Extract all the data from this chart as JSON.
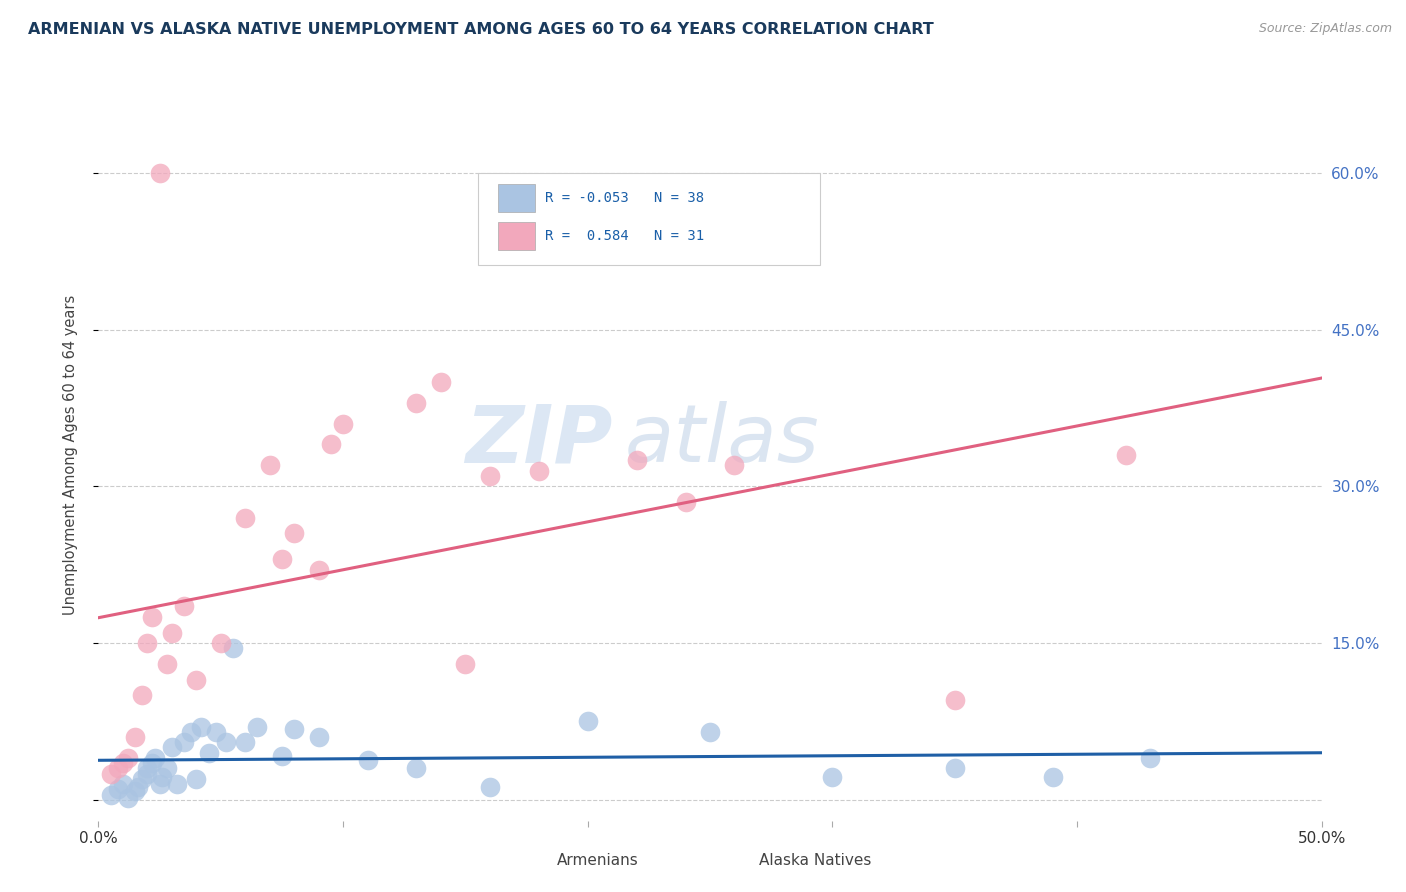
{
  "title": "ARMENIAN VS ALASKA NATIVE UNEMPLOYMENT AMONG AGES 60 TO 64 YEARS CORRELATION CHART",
  "source": "Source: ZipAtlas.com",
  "ylabel": "Unemployment Among Ages 60 to 64 years",
  "xlim": [
    0.0,
    0.5
  ],
  "ylim": [
    -0.02,
    0.68
  ],
  "yticks": [
    0.0,
    0.15,
    0.3,
    0.45,
    0.6
  ],
  "ytick_labels": [
    "",
    "15.0%",
    "30.0%",
    "45.0%",
    "60.0%"
  ],
  "xticks": [
    0.0,
    0.1,
    0.2,
    0.3,
    0.4,
    0.5
  ],
  "armenian_color": "#aac4e2",
  "alaska_color": "#f2a8bc",
  "armenian_line_color": "#1f5fa6",
  "alaska_line_color": "#e06080",
  "watermark_zip": "ZIP",
  "watermark_atlas": "atlas",
  "armenian_x": [
    0.005,
    0.008,
    0.01,
    0.012,
    0.015,
    0.016,
    0.018,
    0.02,
    0.02,
    0.022,
    0.023,
    0.025,
    0.026,
    0.028,
    0.03,
    0.032,
    0.035,
    0.038,
    0.04,
    0.042,
    0.045,
    0.048,
    0.052,
    0.055,
    0.06,
    0.065,
    0.075,
    0.08,
    0.09,
    0.11,
    0.13,
    0.16,
    0.2,
    0.25,
    0.3,
    0.35,
    0.39,
    0.43
  ],
  "armenian_y": [
    0.005,
    0.01,
    0.015,
    0.002,
    0.008,
    0.012,
    0.02,
    0.025,
    0.03,
    0.035,
    0.04,
    0.015,
    0.022,
    0.03,
    0.05,
    0.015,
    0.055,
    0.065,
    0.02,
    0.07,
    0.045,
    0.065,
    0.055,
    0.145,
    0.055,
    0.07,
    0.042,
    0.068,
    0.06,
    0.038,
    0.03,
    0.012,
    0.075,
    0.065,
    0.022,
    0.03,
    0.022,
    0.04
  ],
  "alaska_x": [
    0.005,
    0.008,
    0.01,
    0.012,
    0.015,
    0.018,
    0.02,
    0.022,
    0.025,
    0.028,
    0.03,
    0.035,
    0.04,
    0.05,
    0.06,
    0.07,
    0.075,
    0.08,
    0.09,
    0.095,
    0.1,
    0.13,
    0.14,
    0.15,
    0.16,
    0.18,
    0.22,
    0.24,
    0.26,
    0.35,
    0.42
  ],
  "alaska_y": [
    0.025,
    0.03,
    0.035,
    0.04,
    0.06,
    0.1,
    0.15,
    0.175,
    0.6,
    0.13,
    0.16,
    0.185,
    0.115,
    0.15,
    0.27,
    0.32,
    0.23,
    0.255,
    0.22,
    0.34,
    0.36,
    0.38,
    0.4,
    0.13,
    0.31,
    0.315,
    0.325,
    0.285,
    0.32,
    0.095,
    0.33
  ]
}
